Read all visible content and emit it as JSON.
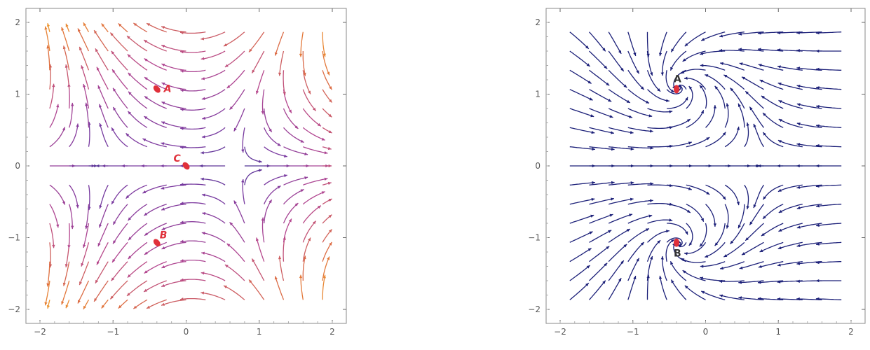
{
  "panels": [
    {
      "id": "left",
      "x_ticks": [
        "-2",
        "-1",
        "0",
        "1",
        "2"
      ],
      "y_ticks": [
        "2",
        "1",
        "0",
        "-1",
        "-2"
      ],
      "xlim": [
        -2,
        2
      ],
      "ylim": [
        -2,
        2
      ],
      "color_style": "magnitude-gradient",
      "colors": [
        "#3a2f8f",
        "#7b3aa0",
        "#b5468f",
        "#e0703c",
        "#f2a52a"
      ],
      "points": [
        {
          "label": "A",
          "x": -0.4,
          "y": 1.07,
          "color": "#e0303a"
        },
        {
          "label": "C",
          "x": 0.0,
          "y": 0.0,
          "color": "#e0303a"
        },
        {
          "label": "B",
          "x": -0.4,
          "y": -1.07,
          "color": "#e0303a"
        }
      ]
    },
    {
      "id": "right",
      "x_ticks": [
        "-2",
        "-1",
        "0",
        "1",
        "2"
      ],
      "y_ticks": [
        "2",
        "1",
        "0",
        "-1",
        "-2"
      ],
      "xlim": [
        -2,
        2
      ],
      "ylim": [
        -2,
        2
      ],
      "color_style": "uniform",
      "colors": [
        "#1b1f78"
      ],
      "points": [
        {
          "label": "A",
          "x": -0.4,
          "y": 1.07,
          "color": "#e0303a"
        },
        {
          "label": "B",
          "x": -0.4,
          "y": -1.07,
          "color": "#e0303a"
        }
      ]
    }
  ]
}
